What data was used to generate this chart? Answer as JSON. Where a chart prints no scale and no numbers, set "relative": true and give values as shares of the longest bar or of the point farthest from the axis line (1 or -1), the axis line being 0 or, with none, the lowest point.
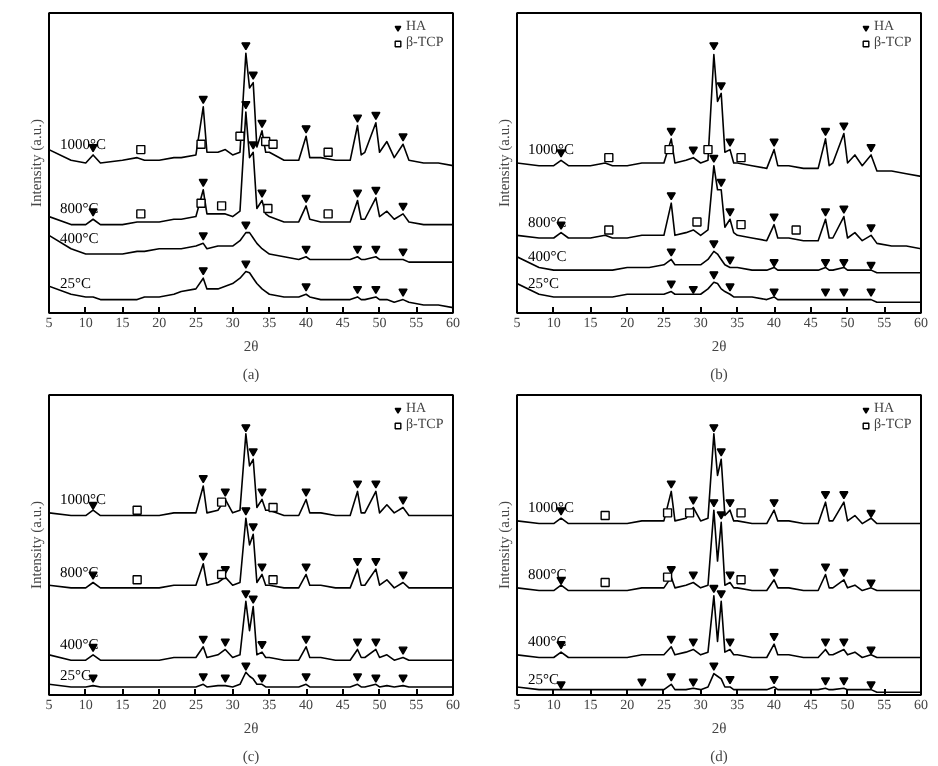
{
  "chart_data": [
    {
      "type": "line",
      "relative": true,
      "xlabel": "2θ",
      "ylabel": "Intensity (a.u.)",
      "annotations": [
        "(a)"
      ],
      "xlim": [
        5,
        60
      ],
      "xticks": [
        5,
        10,
        15,
        20,
        25,
        30,
        35,
        40,
        45,
        50,
        55,
        60
      ],
      "tick_labels": "x",
      "legend": "top right",
      "line_style": "solid",
      "x": [
        5,
        8,
        10,
        11,
        12,
        15,
        17,
        18,
        20,
        22,
        23,
        25,
        26,
        26.5,
        28,
        29,
        30,
        31,
        31.8,
        32.3,
        32.8,
        33.3,
        34,
        34.5,
        35,
        37,
        39,
        40,
        40.5,
        42,
        44,
        46,
        47,
        47.5,
        48,
        49.5,
        50,
        51,
        52,
        53.2,
        54,
        56,
        58,
        60
      ],
      "series": [
        {
          "name": "1000°C",
          "color": "#000000",
          "values": [
            0.61,
            0.57,
            0.56,
            0.59,
            0.56,
            0.57,
            0.58,
            0.57,
            0.57,
            0.58,
            0.58,
            0.59,
            0.77,
            0.6,
            0.6,
            0.61,
            0.59,
            0.6,
            0.97,
            0.84,
            0.86,
            0.62,
            0.68,
            0.6,
            0.6,
            0.57,
            0.57,
            0.66,
            0.58,
            0.58,
            0.57,
            0.57,
            0.7,
            0.59,
            0.6,
            0.71,
            0.6,
            0.64,
            0.58,
            0.63,
            0.57,
            0.56,
            0.56,
            0.55
          ]
        },
        {
          "name": "800°C",
          "color": "#000000",
          "values": [
            0.36,
            0.33,
            0.33,
            0.35,
            0.33,
            0.33,
            0.34,
            0.34,
            0.34,
            0.35,
            0.35,
            0.36,
            0.46,
            0.37,
            0.37,
            0.37,
            0.36,
            0.38,
            0.75,
            0.58,
            0.6,
            0.39,
            0.42,
            0.37,
            0.36,
            0.34,
            0.34,
            0.4,
            0.35,
            0.34,
            0.34,
            0.34,
            0.42,
            0.35,
            0.35,
            0.43,
            0.36,
            0.38,
            0.35,
            0.37,
            0.34,
            0.33,
            0.33,
            0.33
          ]
        },
        {
          "name": "400°C",
          "color": "#000000",
          "values": [
            0.29,
            0.24,
            0.22,
            0.22,
            0.22,
            0.22,
            0.23,
            0.23,
            0.24,
            0.24,
            0.24,
            0.25,
            0.26,
            0.24,
            0.25,
            0.25,
            0.25,
            0.27,
            0.3,
            0.3,
            0.28,
            0.26,
            0.24,
            0.23,
            0.22,
            0.21,
            0.2,
            0.21,
            0.2,
            0.2,
            0.2,
            0.2,
            0.21,
            0.2,
            0.2,
            0.21,
            0.2,
            0.2,
            0.2,
            0.2,
            0.19,
            0.19,
            0.19,
            0.19
          ]
        },
        {
          "name": "25°C",
          "color": "#000000",
          "values": [
            0.1,
            0.07,
            0.06,
            0.06,
            0.05,
            0.05,
            0.05,
            0.06,
            0.06,
            0.07,
            0.08,
            0.09,
            0.13,
            0.09,
            0.09,
            0.1,
            0.11,
            0.13,
            0.155,
            0.15,
            0.13,
            0.11,
            0.09,
            0.08,
            0.07,
            0.06,
            0.06,
            0.07,
            0.06,
            0.05,
            0.05,
            0.05,
            0.06,
            0.05,
            0.05,
            0.06,
            0.05,
            0.05,
            0.04,
            0.05,
            0.04,
            0.03,
            0.03,
            0.02
          ]
        },
        {
          "name": "HA",
          "type": "scatter",
          "marker": "triangle",
          "color": "#000000",
          "x": [
            11,
            26,
            31.8,
            32.8,
            34,
            40,
            47,
            49.5,
            53.2,
            11,
            26,
            31.8,
            32.8,
            34,
            40,
            47,
            49.5,
            53.2,
            26,
            31.8,
            40,
            47,
            49.5,
            53.2,
            26,
            31.8,
            40,
            47,
            49.5,
            53.2
          ],
          "values": [
            0.62,
            0.8,
            1.0,
            0.89,
            0.71,
            0.69,
            0.73,
            0.74,
            0.66,
            0.38,
            0.49,
            0.78,
            0.63,
            0.45,
            0.43,
            0.45,
            0.46,
            0.4,
            0.29,
            0.33,
            0.24,
            0.24,
            0.24,
            0.23,
            0.16,
            0.185,
            0.1,
            0.09,
            0.09,
            0.08
          ]
        },
        {
          "name": "β-TCP",
          "type": "scatter",
          "marker": "square",
          "color": "#000000",
          "x": [
            17.5,
            25.7,
            31,
            34.5,
            35.5,
            43,
            17.5,
            25.7,
            28.5,
            34.8,
            43
          ],
          "values": [
            0.61,
            0.63,
            0.66,
            0.64,
            0.63,
            0.6,
            0.37,
            0.41,
            0.4,
            0.39,
            0.37
          ]
        }
      ]
    },
    {
      "type": "line",
      "relative": true,
      "xlabel": "2θ",
      "ylabel": "Intensity (a.u.)",
      "annotations": [
        "(b)"
      ],
      "xlim": [
        5,
        60
      ],
      "xticks": [
        5,
        10,
        15,
        20,
        25,
        30,
        35,
        40,
        45,
        50,
        55,
        60
      ],
      "tick_labels": "x",
      "legend": "top right",
      "line_style": "solid",
      "x": [
        5,
        8,
        10,
        11,
        12,
        15,
        17,
        18,
        20,
        22,
        23,
        25,
        26,
        26.5,
        28,
        29,
        30,
        31,
        31.8,
        32.3,
        32.8,
        33.3,
        34,
        34.5,
        35,
        37,
        39,
        40,
        40.5,
        42,
        44,
        46,
        47,
        47.5,
        48,
        49.5,
        50,
        51,
        52,
        53.2,
        54,
        56,
        58,
        60
      ],
      "series": [
        {
          "name": "1000°C",
          "color": "#000000",
          "values": [
            0.56,
            0.55,
            0.55,
            0.57,
            0.55,
            0.55,
            0.56,
            0.55,
            0.55,
            0.56,
            0.56,
            0.56,
            0.65,
            0.56,
            0.57,
            0.58,
            0.56,
            0.57,
            0.965,
            0.79,
            0.82,
            0.6,
            0.61,
            0.56,
            0.56,
            0.55,
            0.54,
            0.61,
            0.55,
            0.55,
            0.54,
            0.54,
            0.65,
            0.55,
            0.56,
            0.67,
            0.56,
            0.59,
            0.55,
            0.59,
            0.53,
            0.53,
            0.52,
            0.51
          ]
        },
        {
          "name": "800°C",
          "color": "#000000",
          "values": [
            0.29,
            0.28,
            0.28,
            0.3,
            0.28,
            0.28,
            0.29,
            0.28,
            0.28,
            0.29,
            0.29,
            0.29,
            0.41,
            0.29,
            0.3,
            0.31,
            0.29,
            0.31,
            0.55,
            0.46,
            0.46,
            0.32,
            0.35,
            0.3,
            0.29,
            0.28,
            0.27,
            0.33,
            0.28,
            0.28,
            0.27,
            0.27,
            0.35,
            0.28,
            0.28,
            0.36,
            0.28,
            0.3,
            0.27,
            0.29,
            0.26,
            0.25,
            0.25,
            0.24
          ]
        },
        {
          "name": "400°C",
          "color": "#000000",
          "values": [
            0.21,
            0.17,
            0.16,
            0.16,
            0.16,
            0.16,
            0.16,
            0.16,
            0.17,
            0.17,
            0.17,
            0.18,
            0.2,
            0.18,
            0.18,
            0.18,
            0.18,
            0.2,
            0.23,
            0.22,
            0.2,
            0.18,
            0.17,
            0.17,
            0.17,
            0.16,
            0.16,
            0.17,
            0.16,
            0.16,
            0.16,
            0.16,
            0.17,
            0.16,
            0.16,
            0.17,
            0.16,
            0.16,
            0.16,
            0.16,
            0.15,
            0.15,
            0.15,
            0.15
          ]
        },
        {
          "name": "25°C",
          "color": "#000000",
          "values": [
            0.11,
            0.07,
            0.06,
            0.06,
            0.06,
            0.06,
            0.06,
            0.06,
            0.07,
            0.07,
            0.07,
            0.07,
            0.08,
            0.07,
            0.07,
            0.07,
            0.07,
            0.09,
            0.115,
            0.11,
            0.09,
            0.08,
            0.07,
            0.06,
            0.06,
            0.06,
            0.05,
            0.06,
            0.05,
            0.05,
            0.05,
            0.05,
            0.05,
            0.05,
            0.05,
            0.05,
            0.05,
            0.05,
            0.05,
            0.05,
            0.04,
            0.04,
            0.04,
            0.04
          ]
        },
        {
          "name": "HA",
          "type": "scatter",
          "marker": "triangle",
          "color": "#000000",
          "x": [
            11,
            26,
            29,
            31.8,
            32.8,
            34,
            40,
            47,
            49.5,
            53.2,
            11,
            26,
            31.8,
            32.8,
            34,
            40,
            47,
            49.5,
            53.2,
            26,
            31.8,
            34,
            40,
            47,
            49.5,
            53.2,
            26,
            29,
            31.8,
            34,
            40,
            47,
            49.5,
            53.2
          ],
          "values": [
            0.6,
            0.68,
            0.61,
            1.0,
            0.85,
            0.64,
            0.64,
            0.68,
            0.7,
            0.62,
            0.33,
            0.44,
            0.58,
            0.49,
            0.38,
            0.36,
            0.38,
            0.39,
            0.32,
            0.23,
            0.26,
            0.2,
            0.19,
            0.19,
            0.19,
            0.18,
            0.11,
            0.09,
            0.145,
            0.1,
            0.08,
            0.08,
            0.08,
            0.08
          ]
        },
        {
          "name": "β-TCP",
          "type": "scatter",
          "marker": "square",
          "color": "#000000",
          "x": [
            17.5,
            25.7,
            31,
            35.5,
            17.5,
            29.5,
            35.5,
            43
          ],
          "values": [
            0.58,
            0.61,
            0.61,
            0.58,
            0.31,
            0.34,
            0.33,
            0.31
          ]
        }
      ]
    },
    {
      "type": "line",
      "relative": true,
      "xlabel": "2θ",
      "ylabel": "Intensity (a.u.)",
      "annotations": [
        "(c)"
      ],
      "xlim": [
        5,
        60
      ],
      "xticks": [
        5,
        10,
        15,
        20,
        25,
        30,
        35,
        40,
        45,
        50,
        55,
        60
      ],
      "tick_labels": "x",
      "legend": "top right",
      "line_style": "solid",
      "x": [
        5,
        8,
        10,
        11,
        12,
        15,
        17,
        18,
        20,
        22,
        23,
        25,
        26,
        26.5,
        28,
        29,
        30,
        31,
        31.8,
        32.3,
        32.8,
        33.3,
        34,
        34.5,
        35,
        37,
        39,
        40,
        40.5,
        42,
        44,
        46,
        47,
        47.5,
        48,
        49.5,
        50,
        51,
        52,
        53.2,
        54,
        56,
        58,
        60
      ],
      "series": [
        {
          "name": "1000°C",
          "color": "#000000",
          "values": [
            0.68,
            0.67,
            0.67,
            0.69,
            0.67,
            0.67,
            0.67,
            0.67,
            0.67,
            0.68,
            0.68,
            0.68,
            0.78,
            0.68,
            0.69,
            0.73,
            0.68,
            0.69,
            0.975,
            0.855,
            0.88,
            0.7,
            0.73,
            0.69,
            0.69,
            0.67,
            0.67,
            0.73,
            0.68,
            0.68,
            0.67,
            0.67,
            0.76,
            0.68,
            0.68,
            0.76,
            0.68,
            0.71,
            0.68,
            0.7,
            0.67,
            0.67,
            0.67,
            0.67
          ]
        },
        {
          "name": "800°C",
          "color": "#000000",
          "values": [
            0.41,
            0.4,
            0.4,
            0.42,
            0.4,
            0.4,
            0.4,
            0.4,
            0.4,
            0.41,
            0.41,
            0.41,
            0.49,
            0.41,
            0.42,
            0.44,
            0.41,
            0.42,
            0.66,
            0.56,
            0.6,
            0.42,
            0.45,
            0.41,
            0.41,
            0.4,
            0.4,
            0.45,
            0.41,
            0.41,
            0.4,
            0.4,
            0.47,
            0.41,
            0.41,
            0.47,
            0.41,
            0.43,
            0.4,
            0.42,
            0.4,
            0.4,
            0.4,
            0.4
          ]
        },
        {
          "name": "400°C",
          "color": "#000000",
          "values": [
            0.15,
            0.13,
            0.13,
            0.15,
            0.13,
            0.13,
            0.13,
            0.13,
            0.13,
            0.14,
            0.14,
            0.14,
            0.18,
            0.14,
            0.15,
            0.17,
            0.14,
            0.15,
            0.35,
            0.24,
            0.33,
            0.15,
            0.16,
            0.14,
            0.14,
            0.13,
            0.13,
            0.18,
            0.14,
            0.14,
            0.13,
            0.13,
            0.17,
            0.14,
            0.14,
            0.17,
            0.14,
            0.15,
            0.13,
            0.14,
            0.13,
            0.13,
            0.13,
            0.13
          ]
        },
        {
          "name": "25°C",
          "color": "#000000",
          "values": [
            0.04,
            0.03,
            0.03,
            0.035,
            0.03,
            0.03,
            0.03,
            0.03,
            0.03,
            0.03,
            0.03,
            0.03,
            0.04,
            0.03,
            0.035,
            0.035,
            0.03,
            0.04,
            0.085,
            0.07,
            0.06,
            0.04,
            0.04,
            0.03,
            0.03,
            0.03,
            0.03,
            0.04,
            0.03,
            0.03,
            0.03,
            0.03,
            0.04,
            0.03,
            0.03,
            0.04,
            0.03,
            0.035,
            0.03,
            0.035,
            0.03,
            0.03,
            0.03,
            0.03
          ]
        },
        {
          "name": "HA",
          "type": "scatter",
          "marker": "triangle",
          "color": "#000000",
          "x": [
            11,
            26,
            29,
            31.8,
            32.8,
            34,
            40,
            47,
            49.5,
            53.2,
            11,
            26,
            29,
            31.8,
            32.8,
            34,
            40,
            47,
            49.5,
            53.2,
            11,
            26,
            29,
            31.8,
            32.8,
            34,
            40,
            47,
            49.5,
            53.2,
            11,
            26,
            29,
            31.8,
            34,
            40,
            47,
            49.5,
            53.2
          ],
          "values": [
            0.71,
            0.81,
            0.76,
            1.0,
            0.91,
            0.76,
            0.76,
            0.79,
            0.79,
            0.73,
            0.45,
            0.52,
            0.47,
            0.69,
            0.63,
            0.48,
            0.48,
            0.5,
            0.5,
            0.45,
            0.18,
            0.21,
            0.2,
            0.38,
            0.36,
            0.19,
            0.21,
            0.2,
            0.2,
            0.17,
            0.065,
            0.07,
            0.065,
            0.11,
            0.065,
            0.07,
            0.07,
            0.065,
            0.065
          ]
        },
        {
          "name": "β-TCP",
          "type": "scatter",
          "marker": "square",
          "color": "#000000",
          "x": [
            17,
            28.5,
            35.5,
            17,
            28.5,
            35.5
          ],
          "values": [
            0.69,
            0.72,
            0.7,
            0.43,
            0.45,
            0.43
          ]
        }
      ]
    },
    {
      "type": "line",
      "relative": true,
      "xlabel": "2θ",
      "ylabel": "Intensity (a.u.)",
      "annotations": [
        "(d)"
      ],
      "xlim": [
        5,
        60
      ],
      "xticks": [
        5,
        10,
        15,
        20,
        25,
        30,
        35,
        40,
        45,
        50,
        55,
        60
      ],
      "tick_labels": "x",
      "legend": "top right",
      "line_style": "solid",
      "x": [
        5,
        8,
        10,
        11,
        12,
        15,
        17,
        18,
        20,
        22,
        23,
        25,
        26,
        26.5,
        28,
        29,
        30,
        31,
        31.8,
        32.3,
        32.8,
        33.3,
        34,
        34.5,
        35,
        37,
        39,
        40,
        40.5,
        42,
        44,
        46,
        47,
        47.5,
        48,
        49.5,
        50,
        51,
        52,
        53.2,
        54,
        56,
        58,
        60
      ],
      "series": [
        {
          "name": "1000°C",
          "color": "#000000",
          "values": [
            0.65,
            0.64,
            0.64,
            0.66,
            0.64,
            0.64,
            0.64,
            0.64,
            0.64,
            0.65,
            0.65,
            0.65,
            0.76,
            0.65,
            0.66,
            0.7,
            0.65,
            0.66,
            0.975,
            0.82,
            0.88,
            0.67,
            0.69,
            0.65,
            0.65,
            0.64,
            0.64,
            0.69,
            0.65,
            0.65,
            0.64,
            0.64,
            0.72,
            0.65,
            0.65,
            0.72,
            0.65,
            0.67,
            0.64,
            0.66,
            0.64,
            0.64,
            0.64,
            0.64
          ]
        },
        {
          "name": "800°C",
          "color": "#000000",
          "values": [
            0.4,
            0.39,
            0.39,
            0.41,
            0.39,
            0.39,
            0.39,
            0.39,
            0.39,
            0.4,
            0.4,
            0.4,
            0.44,
            0.4,
            0.41,
            0.42,
            0.4,
            0.41,
            0.69,
            0.5,
            0.645,
            0.41,
            0.42,
            0.4,
            0.4,
            0.39,
            0.39,
            0.43,
            0.4,
            0.4,
            0.39,
            0.39,
            0.45,
            0.4,
            0.4,
            0.43,
            0.4,
            0.41,
            0.39,
            0.4,
            0.39,
            0.39,
            0.39,
            0.39
          ]
        },
        {
          "name": "400°C",
          "color": "#000000",
          "values": [
            0.15,
            0.14,
            0.14,
            0.16,
            0.14,
            0.14,
            0.14,
            0.14,
            0.14,
            0.15,
            0.15,
            0.15,
            0.18,
            0.15,
            0.16,
            0.17,
            0.15,
            0.16,
            0.37,
            0.2,
            0.35,
            0.16,
            0.17,
            0.15,
            0.15,
            0.14,
            0.14,
            0.19,
            0.15,
            0.15,
            0.14,
            0.14,
            0.17,
            0.15,
            0.15,
            0.17,
            0.15,
            0.16,
            0.14,
            0.15,
            0.14,
            0.14,
            0.14,
            0.14
          ]
        },
        {
          "name": "25°C",
          "color": "#000000",
          "values": [
            0.03,
            0.02,
            0.02,
            0.02,
            0.02,
            0.02,
            0.02,
            0.02,
            0.02,
            0.02,
            0.02,
            0.02,
            0.04,
            0.02,
            0.02,
            0.025,
            0.02,
            0.03,
            0.08,
            0.07,
            0.06,
            0.03,
            0.03,
            0.02,
            0.02,
            0.02,
            0.02,
            0.03,
            0.02,
            0.02,
            0.02,
            0.02,
            0.025,
            0.02,
            0.02,
            0.025,
            0.02,
            0.02,
            0.02,
            0.02,
            0.01,
            0.01,
            0.01,
            0.01
          ]
        },
        {
          "name": "HA",
          "type": "scatter",
          "marker": "triangle",
          "color": "#000000",
          "x": [
            11,
            26,
            29,
            31.8,
            32.8,
            34,
            40,
            47,
            49.5,
            53.2,
            11,
            26,
            29,
            31.8,
            32.8,
            34,
            40,
            47,
            49.5,
            53.2,
            11,
            26,
            29,
            31.8,
            32.8,
            34,
            40,
            47,
            49.5,
            53.2,
            11,
            22,
            26,
            29,
            31.8,
            34,
            40,
            47,
            49.5,
            53.2
          ],
          "values": [
            0.69,
            0.79,
            0.73,
            1.0,
            0.91,
            0.72,
            0.72,
            0.75,
            0.75,
            0.68,
            0.43,
            0.47,
            0.45,
            0.72,
            0.675,
            0.45,
            0.46,
            0.48,
            0.46,
            0.42,
            0.19,
            0.21,
            0.2,
            0.4,
            0.38,
            0.2,
            0.22,
            0.2,
            0.2,
            0.17,
            0.04,
            0.05,
            0.07,
            0.05,
            0.11,
            0.06,
            0.06,
            0.055,
            0.055,
            0.04
          ]
        },
        {
          "name": "β-TCP",
          "type": "scatter",
          "marker": "square",
          "color": "#000000",
          "x": [
            17,
            25.5,
            28.5,
            35.5,
            17,
            25.5,
            35.5
          ],
          "values": [
            0.67,
            0.68,
            0.68,
            0.68,
            0.42,
            0.44,
            0.43
          ]
        }
      ]
    }
  ]
}
